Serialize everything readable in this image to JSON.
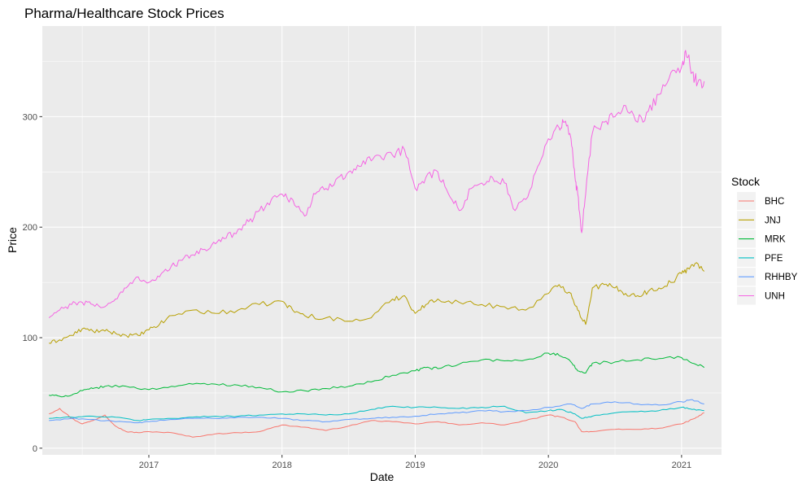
{
  "chart_data": {
    "type": "line",
    "title": "Pharma/Healthcare Stock Prices",
    "xlabel": "Date",
    "ylabel": "Price",
    "xlim": [
      2016.2,
      2021.3
    ],
    "ylim": [
      -6,
      382
    ],
    "x_ticks": [
      {
        "value": 2017,
        "label": "2017"
      },
      {
        "value": 2018,
        "label": "2018"
      },
      {
        "value": 2019,
        "label": "2019"
      },
      {
        "value": 2020,
        "label": "2020"
      },
      {
        "value": 2021,
        "label": "2021"
      }
    ],
    "y_ticks": [
      {
        "value": 0,
        "label": "0"
      },
      {
        "value": 100,
        "label": "100"
      },
      {
        "value": 200,
        "label": "200"
      },
      {
        "value": 300,
        "label": "300"
      }
    ],
    "grid": true,
    "legend": {
      "title": "Stock",
      "position": "right"
    },
    "series": [
      {
        "name": "BHC",
        "color": "#F8766D",
        "x": [
          2016.25,
          2016.33,
          2016.42,
          2016.5,
          2016.58,
          2016.67,
          2016.75,
          2016.83,
          2016.92,
          2017.0,
          2017.17,
          2017.33,
          2017.5,
          2017.67,
          2017.83,
          2018.0,
          2018.17,
          2018.33,
          2018.5,
          2018.67,
          2018.83,
          2019.0,
          2019.17,
          2019.33,
          2019.5,
          2019.67,
          2019.83,
          2020.0,
          2020.1,
          2020.2,
          2020.25,
          2020.33,
          2020.5,
          2020.67,
          2020.83,
          2021.0,
          2021.1,
          2021.17
        ],
        "values": [
          31,
          36,
          27,
          22,
          25,
          30,
          20,
          15,
          14,
          15,
          14,
          10,
          13,
          14,
          15,
          21,
          19,
          16,
          20,
          25,
          24,
          22,
          24,
          21,
          23,
          21,
          25,
          30,
          28,
          24,
          15,
          15,
          17,
          17,
          18,
          22,
          27,
          32
        ]
      },
      {
        "name": "JNJ",
        "color": "#B79F00",
        "x": [
          2016.25,
          2016.33,
          2016.42,
          2016.5,
          2016.58,
          2016.67,
          2016.75,
          2016.83,
          2016.92,
          2017.0,
          2017.08,
          2017.17,
          2017.33,
          2017.5,
          2017.67,
          2017.83,
          2018.0,
          2018.08,
          2018.17,
          2018.33,
          2018.5,
          2018.67,
          2018.83,
          2018.92,
          2019.0,
          2019.08,
          2019.17,
          2019.33,
          2019.5,
          2019.67,
          2019.83,
          2020.0,
          2020.08,
          2020.17,
          2020.22,
          2020.28,
          2020.33,
          2020.42,
          2020.5,
          2020.58,
          2020.67,
          2020.75,
          2020.83,
          2020.92,
          2021.0,
          2021.05,
          2021.1,
          2021.17
        ],
        "values": [
          95,
          98,
          102,
          108,
          106,
          106,
          104,
          102,
          102,
          107,
          112,
          120,
          125,
          122,
          125,
          130,
          133,
          125,
          120,
          118,
          115,
          118,
          135,
          138,
          122,
          130,
          135,
          132,
          130,
          128,
          125,
          140,
          148,
          140,
          125,
          112,
          145,
          148,
          145,
          140,
          138,
          142,
          145,
          150,
          158,
          163,
          167,
          160
        ]
      },
      {
        "name": "MRK",
        "color": "#00BA38",
        "x": [
          2016.25,
          2016.33,
          2016.42,
          2016.5,
          2016.58,
          2016.67,
          2016.83,
          2017.0,
          2017.17,
          2017.33,
          2017.5,
          2017.67,
          2017.83,
          2018.0,
          2018.17,
          2018.33,
          2018.5,
          2018.67,
          2018.83,
          2019.0,
          2019.08,
          2019.17,
          2019.33,
          2019.5,
          2019.67,
          2019.83,
          2020.0,
          2020.08,
          2020.17,
          2020.22,
          2020.28,
          2020.33,
          2020.5,
          2020.67,
          2020.83,
          2021.0,
          2021.08,
          2021.17
        ],
        "values": [
          48,
          47,
          48,
          52,
          54,
          56,
          56,
          53,
          56,
          58,
          58,
          57,
          55,
          51,
          52,
          54,
          56,
          60,
          66,
          70,
          73,
          72,
          76,
          80,
          79,
          80,
          86,
          84,
          78,
          70,
          68,
          77,
          78,
          80,
          81,
          82,
          77,
          73
        ]
      },
      {
        "name": "PFE",
        "color": "#00BFC4",
        "x": [
          2016.25,
          2016.42,
          2016.58,
          2016.75,
          2016.92,
          2017.0,
          2017.17,
          2017.33,
          2017.5,
          2017.67,
          2017.83,
          2018.0,
          2018.17,
          2018.33,
          2018.5,
          2018.67,
          2018.83,
          2019.0,
          2019.17,
          2019.33,
          2019.5,
          2019.67,
          2019.83,
          2020.0,
          2020.1,
          2020.2,
          2020.25,
          2020.33,
          2020.5,
          2020.67,
          2020.83,
          2021.0,
          2021.08,
          2021.17
        ],
        "values": [
          27,
          28,
          29,
          28,
          25,
          26,
          27,
          28,
          29,
          29,
          30,
          31,
          31,
          30,
          31,
          35,
          38,
          37,
          37,
          36,
          37,
          38,
          32,
          34,
          35,
          31,
          27,
          29,
          32,
          33,
          34,
          37,
          35,
          34
        ]
      },
      {
        "name": "RHHBY",
        "color": "#619CFF",
        "x": [
          2016.25,
          2016.42,
          2016.58,
          2016.75,
          2016.92,
          2017.0,
          2017.17,
          2017.33,
          2017.5,
          2017.67,
          2017.83,
          2018.0,
          2018.17,
          2018.33,
          2018.5,
          2018.67,
          2018.83,
          2019.0,
          2019.17,
          2019.33,
          2019.5,
          2019.67,
          2019.83,
          2020.0,
          2020.17,
          2020.25,
          2020.33,
          2020.5,
          2020.67,
          2020.83,
          2021.0,
          2021.08,
          2021.17
        ],
        "values": [
          25,
          27,
          26,
          24,
          23,
          24,
          26,
          27,
          27,
          28,
          28,
          27,
          25,
          24,
          26,
          27,
          28,
          29,
          31,
          32,
          34,
          33,
          34,
          37,
          40,
          36,
          40,
          42,
          40,
          39,
          42,
          44,
          40
        ]
      },
      {
        "name": "UNH",
        "color": "#F564E3",
        "x": [
          2016.25,
          2016.33,
          2016.42,
          2016.5,
          2016.58,
          2016.67,
          2016.75,
          2016.83,
          2016.92,
          2017.0,
          2017.08,
          2017.17,
          2017.25,
          2017.33,
          2017.42,
          2017.5,
          2017.58,
          2017.67,
          2017.75,
          2017.83,
          2017.92,
          2018.0,
          2018.08,
          2018.17,
          2018.25,
          2018.33,
          2018.42,
          2018.5,
          2018.58,
          2018.67,
          2018.75,
          2018.83,
          2018.92,
          2019.0,
          2019.08,
          2019.17,
          2019.25,
          2019.33,
          2019.42,
          2019.5,
          2019.58,
          2019.67,
          2019.75,
          2019.83,
          2019.92,
          2020.0,
          2020.08,
          2020.12,
          2020.17,
          2020.2,
          2020.22,
          2020.25,
          2020.28,
          2020.33,
          2020.42,
          2020.5,
          2020.58,
          2020.67,
          2020.75,
          2020.83,
          2020.92,
          2021.0,
          2021.03,
          2021.08,
          2021.12,
          2021.17
        ],
        "values": [
          118,
          125,
          130,
          132,
          130,
          128,
          135,
          145,
          155,
          150,
          155,
          165,
          170,
          175,
          180,
          185,
          190,
          198,
          205,
          215,
          225,
          230,
          225,
          210,
          230,
          235,
          245,
          250,
          255,
          260,
          262,
          265,
          270,
          235,
          245,
          250,
          230,
          215,
          235,
          240,
          245,
          240,
          215,
          225,
          255,
          280,
          290,
          295,
          280,
          245,
          230,
          195,
          230,
          285,
          295,
          300,
          310,
          295,
          305,
          320,
          340,
          345,
          360,
          340,
          330,
          332
        ]
      }
    ]
  }
}
